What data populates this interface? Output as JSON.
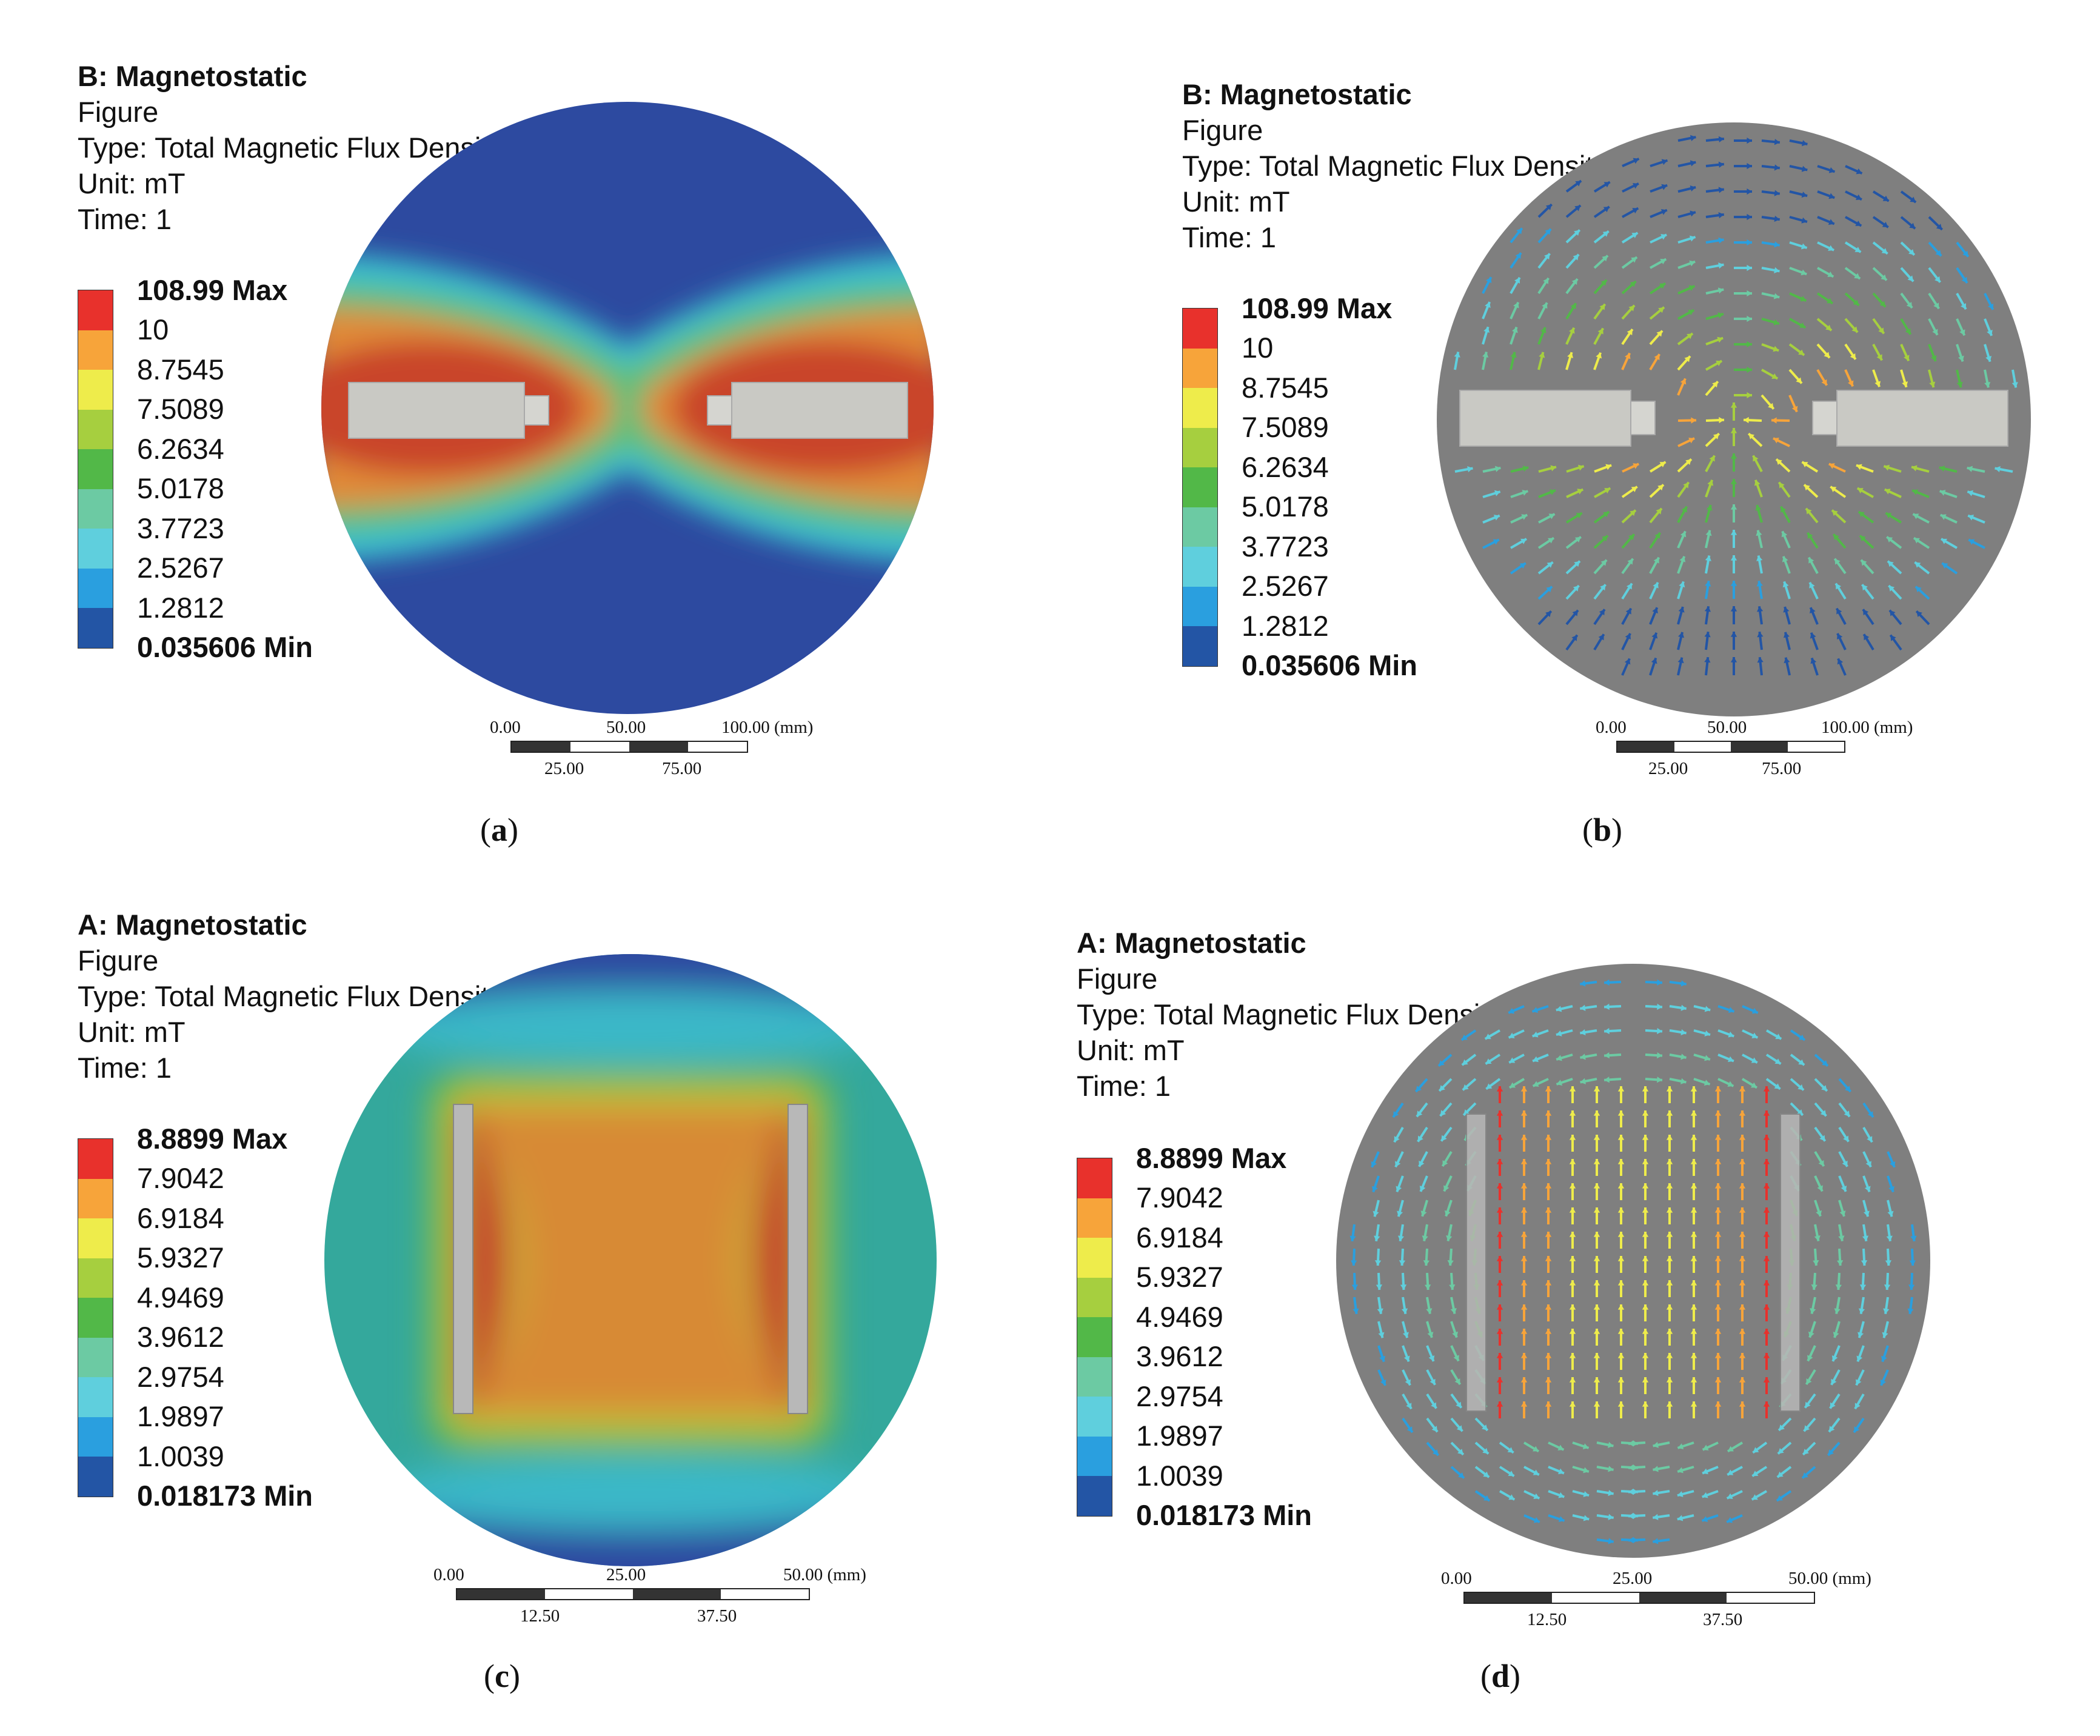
{
  "panels": {
    "a": {
      "header": {
        "title": "B: Magnetostatic",
        "sub": "Figure",
        "type": "Type: Total Magnetic Flux Density",
        "unit": "Unit: mT",
        "time": "Time: 1"
      },
      "legend": {
        "max": "108.99 Max",
        "l1": "10",
        "l2": "8.7545",
        "l3": "7.5089",
        "l4": "6.2634",
        "l5": "5.0178",
        "l6": "3.7723",
        "l7": "2.5267",
        "l8": "1.2812",
        "min": "0.035606 Min"
      },
      "scale": {
        "t0": "0.00",
        "t1": "50.00",
        "t2": "100.00 (mm)",
        "b0": "25.00",
        "b1": "75.00"
      },
      "caption": {
        "open": "(",
        "letter": "a",
        "close": ")"
      }
    },
    "b": {
      "header": {
        "title": "B: Magnetostatic",
        "sub": "Figure",
        "type": "Type: Total Magnetic Flux Density",
        "unit": "Unit: mT",
        "time": "Time: 1"
      },
      "legend": {
        "max": "108.99 Max",
        "l1": "10",
        "l2": "8.7545",
        "l3": "7.5089",
        "l4": "6.2634",
        "l5": "5.0178",
        "l6": "3.7723",
        "l7": "2.5267",
        "l8": "1.2812",
        "min": "0.035606 Min"
      },
      "scale": {
        "t0": "0.00",
        "t1": "50.00",
        "t2": "100.00 (mm)",
        "b0": "25.00",
        "b1": "75.00"
      },
      "caption": {
        "open": "(",
        "letter": "b",
        "close": ")"
      }
    },
    "c": {
      "header": {
        "title": "A: Magnetostatic",
        "sub": "Figure",
        "type": "Type: Total Magnetic Flux Density",
        "unit": "Unit: mT",
        "time": "Time: 1"
      },
      "legend": {
        "max": "8.8899 Max",
        "l1": "7.9042",
        "l2": "6.9184",
        "l3": "5.9327",
        "l4": "4.9469",
        "l5": "3.9612",
        "l6": "2.9754",
        "l7": "1.9897",
        "l8": "1.0039",
        "min": "0.018173 Min"
      },
      "scale": {
        "t0": "0.00",
        "t1": "25.00",
        "t2": "50.00 (mm)",
        "b0": "12.50",
        "b1": "37.50"
      },
      "caption": {
        "open": "(",
        "letter": "c",
        "close": ")"
      }
    },
    "d": {
      "header": {
        "title": "A: Magnetostatic",
        "sub": "Figure",
        "type": "Type: Total Magnetic Flux Density",
        "unit": "Unit: mT",
        "time": "Time: 1"
      },
      "legend": {
        "max": "8.8899 Max",
        "l1": "7.9042",
        "l2": "6.9184",
        "l3": "5.9327",
        "l4": "4.9469",
        "l5": "3.9612",
        "l6": "2.9754",
        "l7": "1.9897",
        "l8": "1.0039",
        "min": "0.018173 Min"
      },
      "scale": {
        "t0": "0.00",
        "t1": "25.00",
        "t2": "50.00 (mm)",
        "b0": "12.50",
        "b1": "37.50"
      },
      "caption": {
        "open": "(",
        "letter": "d",
        "close": ")"
      }
    }
  },
  "colors": {
    "legend_bands": [
      "#e8312c",
      "#f7a43a",
      "#eeec4b",
      "#a6cf3f",
      "#52b848",
      "#6ccaa3",
      "#5fcfdd",
      "#2a9fdf",
      "#2355a5"
    ],
    "magnet": "#c9c9c4",
    "background_sphere": "#7f7f7f"
  }
}
